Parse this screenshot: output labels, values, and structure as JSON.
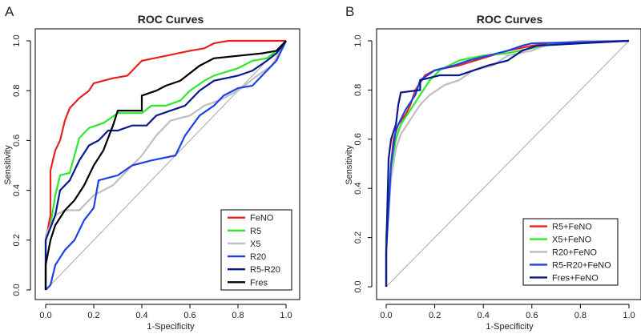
{
  "chart_data": [
    {
      "type": "line",
      "panel_label": "A",
      "title": "ROC Curves",
      "xlabel": "1-Specificity",
      "ylabel": "Sensitivity",
      "xlim": [
        0,
        1
      ],
      "ylim": [
        0,
        1
      ],
      "xticks": [
        "0.0",
        "0.2",
        "0.4",
        "0.6",
        "0.8",
        "1.0"
      ],
      "yticks": [
        "0.0",
        "0.2",
        "0.4",
        "0.6",
        "0.8",
        "1.0"
      ],
      "reference_line": [
        [
          0,
          0
        ],
        [
          1,
          1
        ]
      ],
      "legend_position": "bottom-right",
      "series": [
        {
          "name": "FeNO",
          "color": "#e8231f",
          "points": [
            [
              0,
              0
            ],
            [
              0,
              0.2
            ],
            [
              0.02,
              0.3
            ],
            [
              0.02,
              0.48
            ],
            [
              0.04,
              0.56
            ],
            [
              0.06,
              0.6
            ],
            [
              0.08,
              0.68
            ],
            [
              0.1,
              0.73
            ],
            [
              0.14,
              0.77
            ],
            [
              0.18,
              0.8
            ],
            [
              0.2,
              0.83
            ],
            [
              0.28,
              0.85
            ],
            [
              0.34,
              0.86
            ],
            [
              0.4,
              0.92
            ],
            [
              0.5,
              0.94
            ],
            [
              0.6,
              0.96
            ],
            [
              0.66,
              0.97
            ],
            [
              0.7,
              0.99
            ],
            [
              0.76,
              1.0
            ],
            [
              1,
              1
            ]
          ]
        },
        {
          "name": "R5",
          "color": "#2fe82b",
          "points": [
            [
              0,
              0
            ],
            [
              0,
              0.2
            ],
            [
              0.02,
              0.26
            ],
            [
              0.04,
              0.38
            ],
            [
              0.06,
              0.46
            ],
            [
              0.1,
              0.47
            ],
            [
              0.14,
              0.61
            ],
            [
              0.18,
              0.65
            ],
            [
              0.24,
              0.67
            ],
            [
              0.3,
              0.71
            ],
            [
              0.4,
              0.71
            ],
            [
              0.44,
              0.74
            ],
            [
              0.5,
              0.74
            ],
            [
              0.56,
              0.76
            ],
            [
              0.6,
              0.8
            ],
            [
              0.66,
              0.84
            ],
            [
              0.7,
              0.86
            ],
            [
              0.8,
              0.89
            ],
            [
              0.86,
              0.92
            ],
            [
              0.92,
              0.93
            ],
            [
              0.96,
              0.96
            ],
            [
              1,
              1
            ]
          ]
        },
        {
          "name": "X5",
          "color": "#bfbfbf",
          "points": [
            [
              0,
              0
            ],
            [
              0,
              0.22
            ],
            [
              0.04,
              0.3
            ],
            [
              0.08,
              0.32
            ],
            [
              0.14,
              0.32
            ],
            [
              0.2,
              0.38
            ],
            [
              0.28,
              0.42
            ],
            [
              0.36,
              0.5
            ],
            [
              0.4,
              0.54
            ],
            [
              0.46,
              0.62
            ],
            [
              0.52,
              0.68
            ],
            [
              0.6,
              0.7
            ],
            [
              0.66,
              0.74
            ],
            [
              0.72,
              0.76
            ],
            [
              0.8,
              0.8
            ],
            [
              0.88,
              0.86
            ],
            [
              0.94,
              0.9
            ],
            [
              1,
              1
            ]
          ]
        },
        {
          "name": "R20",
          "color": "#1f3fe8",
          "points": [
            [
              0,
              0
            ],
            [
              0.02,
              0.02
            ],
            [
              0.04,
              0.1
            ],
            [
              0.08,
              0.16
            ],
            [
              0.12,
              0.2
            ],
            [
              0.16,
              0.28
            ],
            [
              0.2,
              0.33
            ],
            [
              0.22,
              0.44
            ],
            [
              0.3,
              0.46
            ],
            [
              0.36,
              0.5
            ],
            [
              0.44,
              0.52
            ],
            [
              0.54,
              0.54
            ],
            [
              0.58,
              0.62
            ],
            [
              0.64,
              0.7
            ],
            [
              0.7,
              0.74
            ],
            [
              0.74,
              0.78
            ],
            [
              0.8,
              0.81
            ],
            [
              0.86,
              0.82
            ],
            [
              0.9,
              0.86
            ],
            [
              0.96,
              0.92
            ],
            [
              1,
              1
            ]
          ]
        },
        {
          "name": "R5-R20",
          "color": "#0a1a8c",
          "points": [
            [
              0,
              0
            ],
            [
              0,
              0.2
            ],
            [
              0.04,
              0.3
            ],
            [
              0.06,
              0.4
            ],
            [
              0.1,
              0.44
            ],
            [
              0.14,
              0.52
            ],
            [
              0.18,
              0.58
            ],
            [
              0.22,
              0.6
            ],
            [
              0.26,
              0.64
            ],
            [
              0.3,
              0.64
            ],
            [
              0.36,
              0.66
            ],
            [
              0.42,
              0.66
            ],
            [
              0.46,
              0.7
            ],
            [
              0.52,
              0.72
            ],
            [
              0.58,
              0.74
            ],
            [
              0.64,
              0.8
            ],
            [
              0.7,
              0.84
            ],
            [
              0.8,
              0.86
            ],
            [
              0.86,
              0.88
            ],
            [
              0.92,
              0.92
            ],
            [
              0.96,
              0.95
            ],
            [
              1,
              1
            ]
          ]
        },
        {
          "name": "Fres",
          "color": "#000000",
          "points": [
            [
              0,
              0
            ],
            [
              0,
              0.1
            ],
            [
              0.02,
              0.2
            ],
            [
              0.04,
              0.26
            ],
            [
              0.08,
              0.32
            ],
            [
              0.12,
              0.36
            ],
            [
              0.16,
              0.42
            ],
            [
              0.2,
              0.5
            ],
            [
              0.24,
              0.56
            ],
            [
              0.28,
              0.66
            ],
            [
              0.3,
              0.72
            ],
            [
              0.4,
              0.72
            ],
            [
              0.4,
              0.78
            ],
            [
              0.46,
              0.8
            ],
            [
              0.5,
              0.82
            ],
            [
              0.56,
              0.84
            ],
            [
              0.64,
              0.9
            ],
            [
              0.7,
              0.93
            ],
            [
              0.8,
              0.94
            ],
            [
              0.9,
              0.95
            ],
            [
              0.96,
              0.96
            ],
            [
              1,
              1
            ]
          ]
        }
      ]
    },
    {
      "type": "line",
      "panel_label": "B",
      "title": "ROC Curves",
      "xlabel": "1-Specificity",
      "ylabel": "Sensitivity",
      "xlim": [
        0,
        1
      ],
      "ylim": [
        0,
        1
      ],
      "xticks": [
        "0.0",
        "0.2",
        "0.4",
        "0.6",
        "0.8",
        "1.0"
      ],
      "yticks": [
        "0.0",
        "0.2",
        "0.4",
        "0.6",
        "0.8",
        "1.0"
      ],
      "reference_line": [
        [
          0,
          0
        ],
        [
          1,
          1
        ]
      ],
      "legend_position": "bottom-right",
      "series": [
        {
          "name": "R5+FeNO",
          "color": "#e8231f",
          "points": [
            [
              0,
              0
            ],
            [
              0,
              0.2
            ],
            [
              0.01,
              0.32
            ],
            [
              0.02,
              0.5
            ],
            [
              0.03,
              0.6
            ],
            [
              0.05,
              0.66
            ],
            [
              0.08,
              0.7
            ],
            [
              0.1,
              0.74
            ],
            [
              0.12,
              0.8
            ],
            [
              0.16,
              0.86
            ],
            [
              0.2,
              0.88
            ],
            [
              0.3,
              0.9
            ],
            [
              0.4,
              0.93
            ],
            [
              0.5,
              0.96
            ],
            [
              0.6,
              0.98
            ],
            [
              0.68,
              0.99
            ],
            [
              1,
              1
            ]
          ]
        },
        {
          "name": "X5+FeNO",
          "color": "#2fe82b",
          "points": [
            [
              0,
              0
            ],
            [
              0,
              0.2
            ],
            [
              0.01,
              0.38
            ],
            [
              0.02,
              0.48
            ],
            [
              0.04,
              0.6
            ],
            [
              0.06,
              0.66
            ],
            [
              0.1,
              0.72
            ],
            [
              0.14,
              0.78
            ],
            [
              0.18,
              0.84
            ],
            [
              0.22,
              0.88
            ],
            [
              0.3,
              0.92
            ],
            [
              0.4,
              0.94
            ],
            [
              0.5,
              0.95
            ],
            [
              0.6,
              0.97
            ],
            [
              0.7,
              0.99
            ],
            [
              1,
              1
            ]
          ]
        },
        {
          "name": "R20+FeNO",
          "color": "#bfbfbf",
          "points": [
            [
              0,
              0
            ],
            [
              0,
              0.16
            ],
            [
              0.02,
              0.44
            ],
            [
              0.04,
              0.56
            ],
            [
              0.06,
              0.62
            ],
            [
              0.1,
              0.68
            ],
            [
              0.14,
              0.74
            ],
            [
              0.18,
              0.78
            ],
            [
              0.24,
              0.82
            ],
            [
              0.3,
              0.84
            ],
            [
              0.36,
              0.88
            ],
            [
              0.44,
              0.9
            ],
            [
              0.5,
              0.94
            ],
            [
              0.6,
              0.96
            ],
            [
              0.68,
              0.99
            ],
            [
              0.8,
              1.0
            ],
            [
              1,
              1
            ]
          ]
        },
        {
          "name": "R5-R20+FeNO",
          "color": "#1f3fe8",
          "points": [
            [
              0,
              0
            ],
            [
              0,
              0.14
            ],
            [
              0.02,
              0.5
            ],
            [
              0.04,
              0.64
            ],
            [
              0.06,
              0.68
            ],
            [
              0.08,
              0.72
            ],
            [
              0.12,
              0.78
            ],
            [
              0.14,
              0.84
            ],
            [
              0.2,
              0.88
            ],
            [
              0.28,
              0.9
            ],
            [
              0.34,
              0.92
            ],
            [
              0.42,
              0.94
            ],
            [
              0.5,
              0.96
            ],
            [
              0.56,
              0.98
            ],
            [
              0.6,
              0.99
            ],
            [
              1,
              1
            ]
          ]
        },
        {
          "name": "Fres+FeNO",
          "color": "#0a1a8c",
          "points": [
            [
              0,
              0
            ],
            [
              0,
              0.14
            ],
            [
              0.01,
              0.52
            ],
            [
              0.02,
              0.6
            ],
            [
              0.04,
              0.66
            ],
            [
              0.05,
              0.74
            ],
            [
              0.06,
              0.79
            ],
            [
              0.14,
              0.8
            ],
            [
              0.14,
              0.84
            ],
            [
              0.22,
              0.86
            ],
            [
              0.3,
              0.86
            ],
            [
              0.36,
              0.88
            ],
            [
              0.42,
              0.9
            ],
            [
              0.5,
              0.92
            ],
            [
              0.56,
              0.96
            ],
            [
              0.62,
              0.98
            ],
            [
              0.8,
              0.99
            ],
            [
              1,
              1
            ]
          ]
        }
      ]
    }
  ]
}
